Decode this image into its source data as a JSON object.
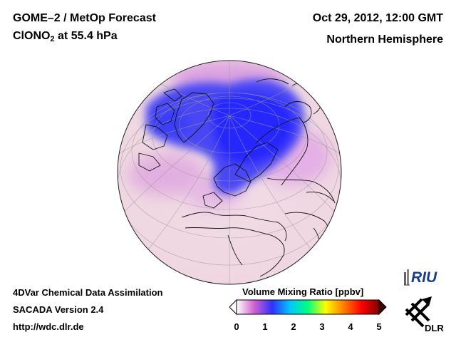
{
  "header": {
    "title": "GOME–2 / MetOp Forecast",
    "species_main": "ClONO",
    "species_sub": "2",
    "species_level": " at 55.4 hPa",
    "date": "Oct 29, 2012, 12:00 GMT",
    "region": "Northern Hemisphere"
  },
  "footer": {
    "assimilation": "4DVar Chemical Data Assimilation",
    "version": "SACADA Version 2.4",
    "url": "http://wdc.dlr.de"
  },
  "colorbar": {
    "title": "Volume Mixing Ratio [ppbv]",
    "ticks": [
      "0",
      "1",
      "2",
      "3",
      "4",
      "5"
    ],
    "min": 0,
    "max": 5,
    "colors": [
      "#ffffff",
      "#d060d0",
      "#3030ff",
      "#00c8ff",
      "#00ff80",
      "#ffff00",
      "#ff8000",
      "#ff0000",
      "#800000"
    ]
  },
  "logos": {
    "riu": "RIU",
    "dlr": "DLR"
  },
  "map": {
    "projection": "orthographic",
    "background_color": "#f3e4ea",
    "low_value_color": "#3333ff"
  }
}
